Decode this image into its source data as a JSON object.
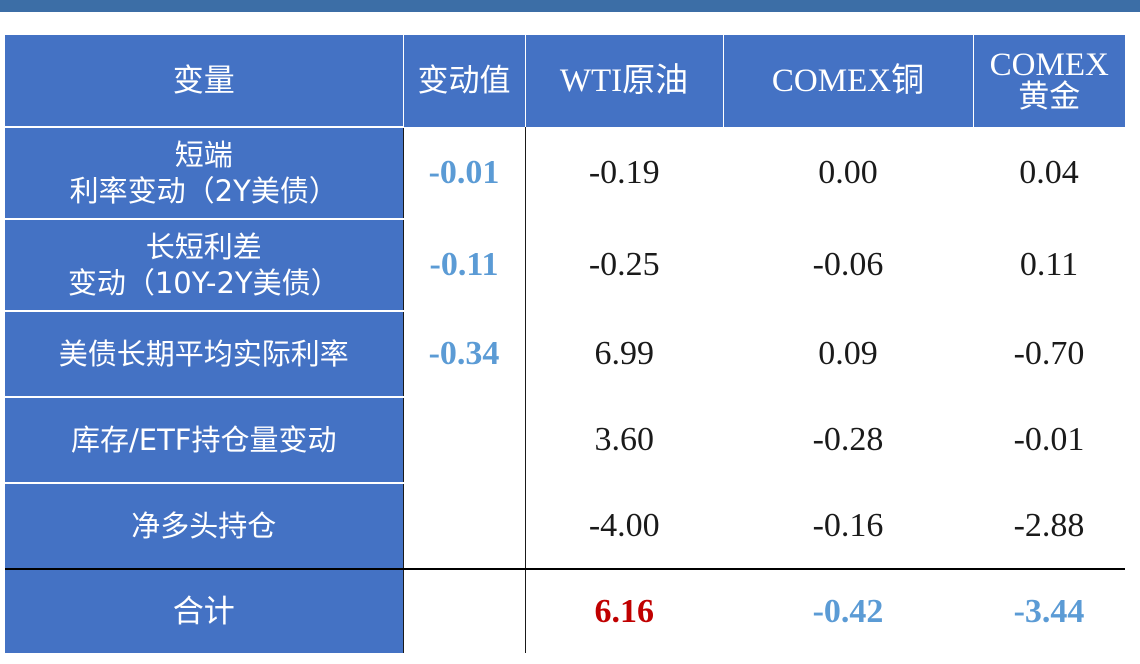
{
  "header": {
    "col_variable": "变量",
    "col_change": "变动值",
    "col_wti": "WTI原油",
    "col_copper": "COMEX铜",
    "col_gold_line1": "COMEX",
    "col_gold_line2": "黄金"
  },
  "rows": [
    {
      "label_line1": "短端",
      "label_line2": "利率变动（2Y美债）",
      "change": "-0.01",
      "wti": "-0.19",
      "copper": "0.00",
      "gold": "0.04"
    },
    {
      "label_line1": "长短利差",
      "label_line2": "变动（10Y-2Y美债）",
      "change": "-0.11",
      "wti": "-0.25",
      "copper": "-0.06",
      "gold": "0.11"
    },
    {
      "label_line1": "美债长期平均实际利率",
      "change": "-0.34",
      "wti": "6.99",
      "copper": "0.09",
      "gold": "-0.70"
    },
    {
      "label_line1": "库存/ETF持仓量变动",
      "change": "",
      "wti": "3.60",
      "copper": "-0.28",
      "gold": "-0.01"
    },
    {
      "label_line1": "净多头持仓",
      "change": "",
      "wti": "-4.00",
      "copper": "-0.16",
      "gold": "-2.88"
    }
  ],
  "total": {
    "label": "合计",
    "change": "",
    "wti": "6.16",
    "copper": "-0.42",
    "gold": "-3.44"
  },
  "colors": {
    "header_bg": "#4472c4",
    "top_bar": "#3c6ea6",
    "positive_total": "#c00000",
    "negative_value": "#5b9bd5"
  }
}
